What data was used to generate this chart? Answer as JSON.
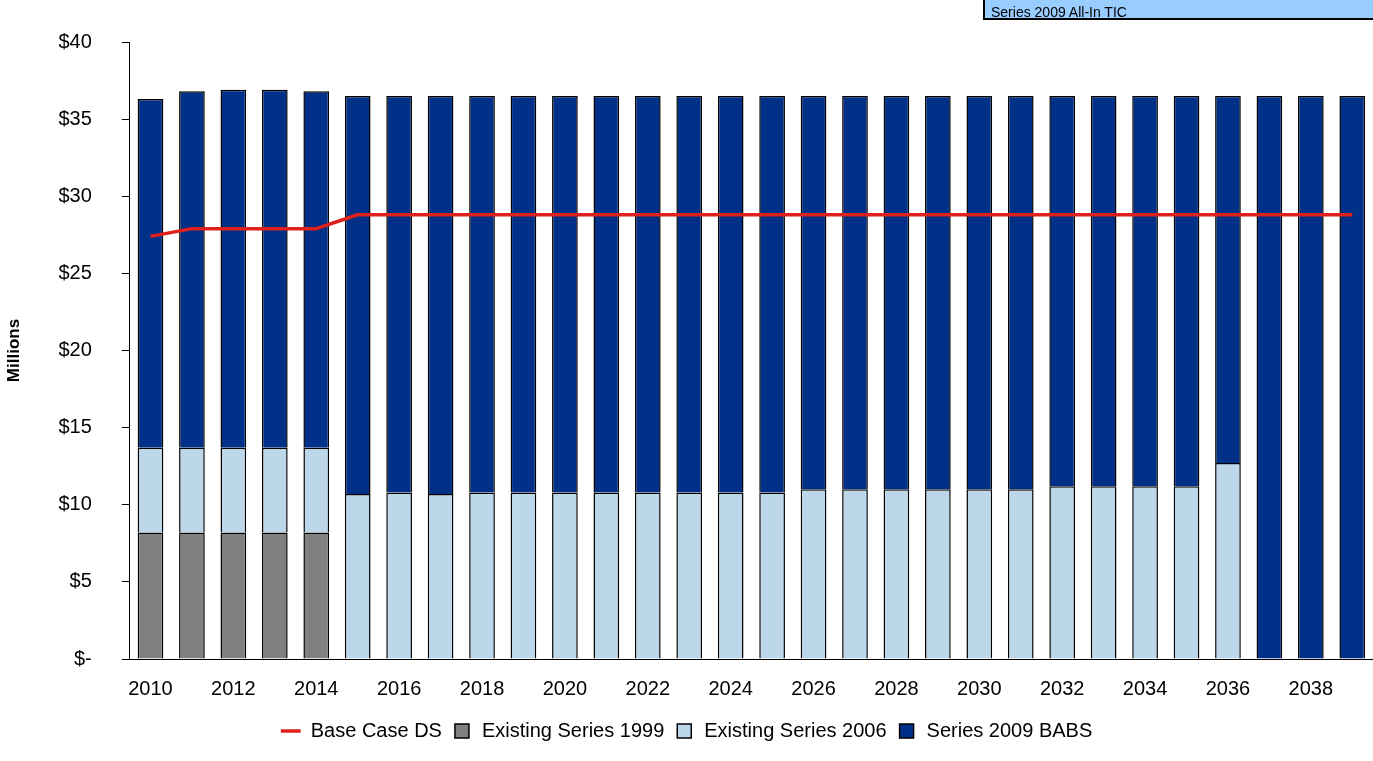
{
  "chart_data": {
    "type": "bar",
    "stacked": true,
    "ylabel": "Millions",
    "categories": [
      "2010",
      null,
      "2012",
      null,
      "2014",
      null,
      "2016",
      null,
      "2018",
      null,
      "2020",
      null,
      "2022",
      null,
      "2024",
      null,
      "2026",
      null,
      "2028",
      null,
      "2030",
      null,
      "2032",
      null,
      "2034",
      null,
      "2036",
      null,
      "2038",
      null
    ],
    "series": [
      {
        "name": "Existing Series 1999",
        "color": "#808080",
        "values": [
          8.2,
          8.2,
          8.2,
          8.2,
          8.2,
          0,
          0,
          0,
          0,
          0,
          0,
          0,
          0,
          0,
          0,
          0,
          0,
          0,
          0,
          0,
          0,
          0,
          0,
          0,
          0,
          0,
          0,
          0,
          0,
          0
        ]
      },
      {
        "name": "Existing Series 2006",
        "color": "#bdd7ea",
        "values": [
          5.5,
          5.5,
          5.5,
          5.5,
          5.5,
          10.7,
          10.8,
          10.7,
          10.8,
          10.8,
          10.8,
          10.8,
          10.8,
          10.8,
          10.8,
          10.8,
          11.0,
          11.0,
          11.0,
          11.0,
          11.0,
          11.0,
          11.2,
          11.2,
          11.2,
          11.2,
          12.7,
          0,
          0,
          0
        ]
      },
      {
        "name": "Series 2009 BABS",
        "color": "#003087",
        "values": [
          22.6,
          23.1,
          23.2,
          23.2,
          23.1,
          25.8,
          25.7,
          25.8,
          25.7,
          25.7,
          25.7,
          25.7,
          25.7,
          25.7,
          25.7,
          25.7,
          25.5,
          25.5,
          25.5,
          25.5,
          25.5,
          25.5,
          25.3,
          25.3,
          25.3,
          25.3,
          23.8,
          36.5,
          36.5,
          36.5
        ]
      },
      {
        "name": "Base Case DS",
        "type": "line",
        "color": "#e0201c",
        "marker": "none",
        "values": [
          27.4,
          27.9,
          27.9,
          27.9,
          27.9,
          28.8,
          28.8,
          28.8,
          28.8,
          28.8,
          28.8,
          28.8,
          28.8,
          28.8,
          28.8,
          28.8,
          28.8,
          28.8,
          28.8,
          28.8,
          28.8,
          28.8,
          28.8,
          28.8,
          28.8,
          28.8,
          28.8,
          28.8,
          28.8,
          28.8
        ]
      }
    ],
    "ylim": [
      0,
      40
    ],
    "yticks": [
      {
        "value": 0,
        "label": "$-"
      },
      {
        "value": 5,
        "label": "$5"
      },
      {
        "value": 10,
        "label": "$10"
      },
      {
        "value": 15,
        "label": "$15"
      },
      {
        "value": 20,
        "label": "$20"
      },
      {
        "value": 25,
        "label": "$25"
      },
      {
        "value": 30,
        "label": "$30"
      },
      {
        "value": 35,
        "label": "$35"
      },
      {
        "value": 40,
        "label": "$40"
      }
    ],
    "grid": false,
    "legend": "bottom",
    "annotations": [
      "Series 2009 All-In TIC"
    ]
  }
}
